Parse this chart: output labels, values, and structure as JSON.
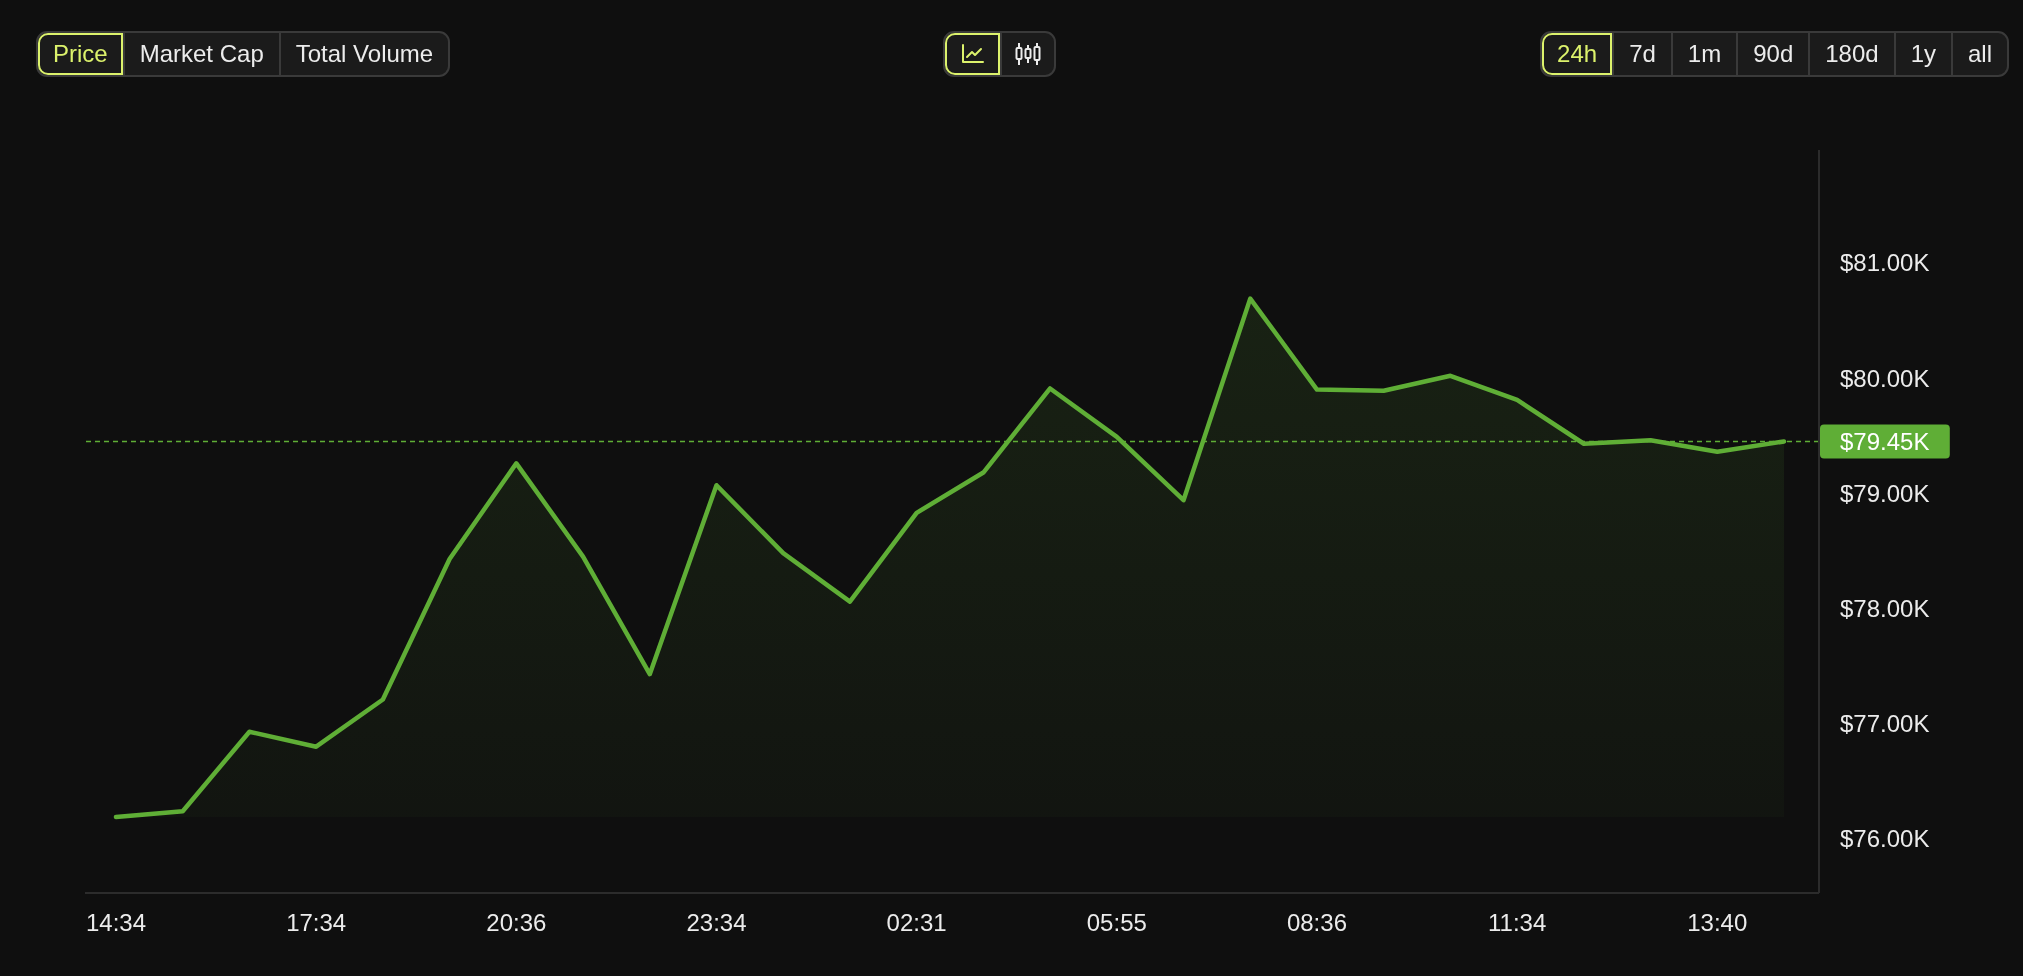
{
  "chart_data": {
    "type": "area",
    "categories": [
      "14:34",
      null,
      null,
      "17:34",
      null,
      null,
      "20:36",
      null,
      null,
      "23:34",
      null,
      null,
      "02:31",
      null,
      null,
      "05:55",
      null,
      null,
      "08:36",
      null,
      null,
      "11:34",
      null,
      null,
      "13:40",
      null
    ],
    "values": [
      76190,
      76240,
      76930,
      76800,
      77210,
      78430,
      79260,
      78450,
      77430,
      79070,
      78480,
      78060,
      78830,
      79180,
      79910,
      79490,
      78940,
      80690,
      79900,
      79890,
      80020,
      79810,
      79430,
      79460,
      79360,
      79450
    ],
    "color": "#5fae36",
    "ylim": [
      75530,
      81980
    ],
    "yticks": [
      {
        "value": 76000,
        "label": "$76.00K"
      },
      {
        "value": 77000,
        "label": "$77.00K"
      },
      {
        "value": 78000,
        "label": "$78.00K"
      },
      {
        "value": 79000,
        "label": "$79.00K"
      },
      {
        "value": 80000,
        "label": "$80.00K"
      },
      {
        "value": 81000,
        "label": "$81.00K"
      }
    ],
    "ref_lines": [
      {
        "axis": "y",
        "value": 79450,
        "label": "$79.45K",
        "color": "#5fae36",
        "line_style": "dashed"
      }
    ],
    "annotations": [
      "Price",
      "Market Cap",
      "Total Volume",
      "24h",
      "7d",
      "1m",
      "90d",
      "180d",
      "1y",
      "all"
    ]
  }
}
